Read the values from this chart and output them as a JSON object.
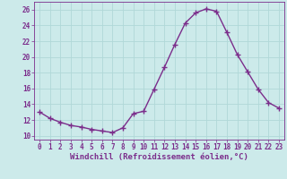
{
  "x": [
    0,
    1,
    2,
    3,
    4,
    5,
    6,
    7,
    8,
    9,
    10,
    11,
    12,
    13,
    14,
    15,
    16,
    17,
    18,
    19,
    20,
    21,
    22,
    23
  ],
  "y": [
    13.0,
    12.2,
    11.7,
    11.3,
    11.1,
    10.8,
    10.6,
    10.4,
    11.0,
    12.8,
    13.1,
    15.9,
    18.7,
    21.6,
    24.3,
    25.6,
    26.1,
    25.8,
    23.1,
    20.3,
    18.1,
    15.9,
    14.2,
    13.5
  ],
  "line_color": "#7b2d8b",
  "marker": "+",
  "markersize": 4,
  "linewidth": 1.0,
  "bg_color": "#cceaea",
  "grid_color": "#b0d8d8",
  "xlim": [
    -0.5,
    23.5
  ],
  "ylim": [
    9.5,
    27.0
  ],
  "yticks": [
    10,
    12,
    14,
    16,
    18,
    20,
    22,
    24,
    26
  ],
  "xticks": [
    0,
    1,
    2,
    3,
    4,
    5,
    6,
    7,
    8,
    9,
    10,
    11,
    12,
    13,
    14,
    15,
    16,
    17,
    18,
    19,
    20,
    21,
    22,
    23
  ],
  "xlabel": "Windchill (Refroidissement éolien,°C)",
  "tick_color": "#7b2d8b",
  "tick_fontsize": 5.5,
  "label_fontsize": 6.5
}
